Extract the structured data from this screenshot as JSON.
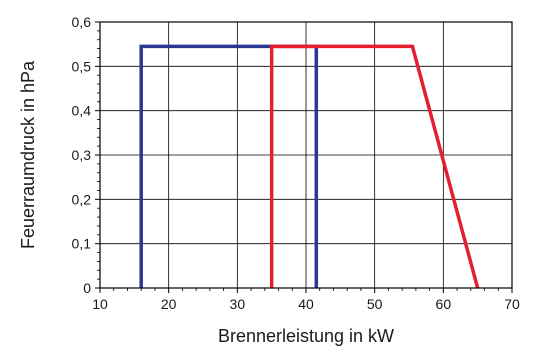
{
  "chart_data": {
    "type": "line",
    "title": "",
    "xlabel": "Brennerleistung in kW",
    "ylabel": "Feuerraumdruck in hPa",
    "xlim": [
      10,
      70
    ],
    "ylim": [
      0,
      0.6
    ],
    "x_ticks": [
      "10",
      "20",
      "30",
      "40",
      "50",
      "60",
      "70"
    ],
    "y_ticks": [
      "0",
      "0,1",
      "0,2",
      "0,3",
      "0,4",
      "0,5",
      "0,6"
    ],
    "grid": true,
    "legend": "none",
    "series": [
      {
        "color": "#2d3691",
        "points": [
          [
            16,
            0
          ],
          [
            16,
            0.545
          ],
          [
            41.5,
            0.545
          ],
          [
            41.5,
            0
          ]
        ]
      },
      {
        "color": "#e5202e",
        "points": [
          [
            35,
            0
          ],
          [
            35,
            0.545
          ],
          [
            55.5,
            0.545
          ],
          [
            65,
            0
          ]
        ]
      }
    ]
  }
}
